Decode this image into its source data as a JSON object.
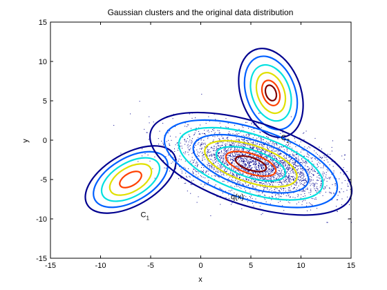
{
  "chart_data": {
    "type": "contour",
    "title": "Gaussian clusters and the original data distribution",
    "xlabel": "x",
    "ylabel": "y",
    "xlim": [
      -15,
      15
    ],
    "ylim": [
      -15,
      15
    ],
    "xticks": [
      -15,
      -10,
      -5,
      0,
      5,
      10,
      15
    ],
    "yticks": [
      -15,
      -10,
      -5,
      0,
      5,
      10,
      15
    ],
    "grid": false,
    "contour_colors": [
      "#00008f",
      "#0060ff",
      "#00e0e0",
      "#e0e000",
      "#ff4000",
      "#800000"
    ],
    "scatter_color": "#00008f",
    "clusters": [
      {
        "center": [
          -7,
          -5
        ],
        "angle_deg": 30,
        "radii_x": [
          5.0,
          4.1,
          3.2,
          2.3,
          1.2
        ],
        "radii_y": [
          3.3,
          2.75,
          2.15,
          1.55,
          0.8
        ],
        "colors": [
          0,
          1,
          2,
          3,
          4
        ]
      },
      {
        "center": [
          7,
          6
        ],
        "angle_deg": -70,
        "radii_x": [
          4.6,
          3.8,
          2.9,
          2.1,
          1.3,
          0.8
        ],
        "radii_y": [
          3.8,
          3.1,
          2.4,
          1.7,
          1.05,
          0.65
        ],
        "colors": [
          0,
          1,
          2,
          3,
          4,
          5
        ]
      },
      {
        "center": [
          5,
          -3
        ],
        "angle_deg": -18,
        "radii_x": [
          10.5,
          9.0,
          7.5,
          6.0,
          4.8,
          3.6,
          2.6,
          1.6
        ],
        "radii_y": [
          5.3,
          4.5,
          3.7,
          3.0,
          2.35,
          1.75,
          1.25,
          0.8
        ],
        "colors": [
          0,
          1,
          2,
          1,
          3,
          2,
          4,
          5
        ]
      }
    ],
    "scatter": {
      "center": [
        5.5,
        -3
      ],
      "angle_deg": -18,
      "sigma_major": 4.0,
      "sigma_minor": 1.9,
      "count": 3200
    },
    "annotations": [
      {
        "text": "C",
        "sub": "2",
        "x": 8,
        "y": 0
      },
      {
        "text": "q(x)",
        "sub": "",
        "x": 3,
        "y": -7.5
      },
      {
        "text": "C",
        "sub": "1",
        "x": -6,
        "y": -9.8
      }
    ]
  }
}
